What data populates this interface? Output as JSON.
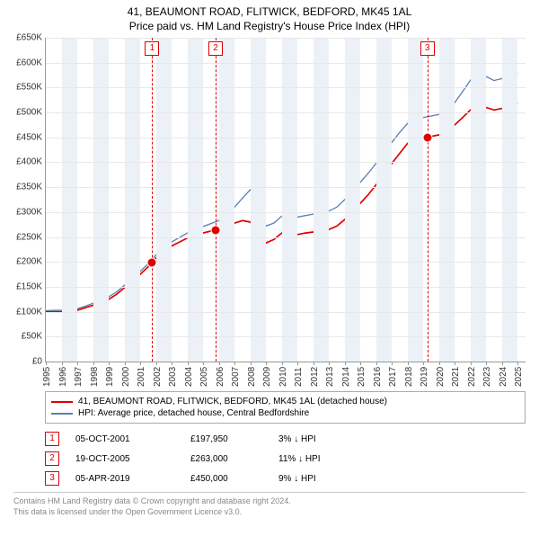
{
  "title": "41, BEAUMONT ROAD, FLITWICK, BEDFORD, MK45 1AL",
  "subtitle": "Price paid vs. HM Land Registry's House Price Index (HPI)",
  "chart": {
    "type": "line",
    "background_color": "#ffffff",
    "grid_color": "#e8e8e8",
    "shade_color": "#ebf1f6",
    "axis_color": "#999999",
    "font_family": "Arial",
    "title_fontsize": 12,
    "label_fontsize": 10,
    "x_years": [
      1995,
      1996,
      1997,
      1998,
      1999,
      2000,
      2001,
      2002,
      2003,
      2004,
      2005,
      2006,
      2007,
      2008,
      2009,
      2010,
      2011,
      2012,
      2013,
      2014,
      2015,
      2016,
      2017,
      2018,
      2019,
      2020,
      2021,
      2022,
      2023,
      2024,
      2025
    ],
    "xlim": [
      1995,
      2025.5
    ],
    "ylim": [
      0,
      650000
    ],
    "ytick_step": 50000,
    "yticks": [
      "£0",
      "£50K",
      "£100K",
      "£150K",
      "£200K",
      "£250K",
      "£300K",
      "£350K",
      "£400K",
      "£450K",
      "£500K",
      "£550K",
      "£600K",
      "£650K"
    ],
    "shaded_years": [
      1996,
      1998,
      2000,
      2002,
      2004,
      2006,
      2008,
      2010,
      2012,
      2014,
      2016,
      2018,
      2020,
      2022,
      2024
    ],
    "series": [
      {
        "name": "red",
        "label": "41, BEAUMONT ROAD, FLITWICK, BEDFORD, MK45 1AL (detached house)",
        "color": "#e00000",
        "width": 1.7,
        "points": [
          [
            1995.0,
            100000
          ],
          [
            1995.5,
            100000
          ],
          [
            1996.0,
            100000
          ],
          [
            1996.5,
            101000
          ],
          [
            1997.0,
            103000
          ],
          [
            1997.5,
            108000
          ],
          [
            1998.0,
            113000
          ],
          [
            1998.5,
            120000
          ],
          [
            1999.0,
            125000
          ],
          [
            1999.5,
            135000
          ],
          [
            2000.0,
            148000
          ],
          [
            2000.5,
            160000
          ],
          [
            2001.0,
            175000
          ],
          [
            2001.5,
            190000
          ],
          [
            2001.76,
            197950
          ],
          [
            2002.0,
            208000
          ],
          [
            2002.5,
            222000
          ],
          [
            2003.0,
            232000
          ],
          [
            2003.5,
            240000
          ],
          [
            2004.0,
            248000
          ],
          [
            2004.5,
            255000
          ],
          [
            2005.0,
            258000
          ],
          [
            2005.5,
            262000
          ],
          [
            2005.8,
            263000
          ],
          [
            2006.0,
            265000
          ],
          [
            2006.5,
            272000
          ],
          [
            2007.0,
            278000
          ],
          [
            2007.5,
            283000
          ],
          [
            2008.0,
            280000
          ],
          [
            2008.5,
            260000
          ],
          [
            2009.0,
            238000
          ],
          [
            2009.5,
            245000
          ],
          [
            2010.0,
            258000
          ],
          [
            2010.5,
            262000
          ],
          [
            2011.0,
            255000
          ],
          [
            2011.5,
            258000
          ],
          [
            2012.0,
            260000
          ],
          [
            2012.5,
            262000
          ],
          [
            2013.0,
            265000
          ],
          [
            2013.5,
            272000
          ],
          [
            2014.0,
            285000
          ],
          [
            2014.5,
            300000
          ],
          [
            2015.0,
            318000
          ],
          [
            2015.5,
            335000
          ],
          [
            2016.0,
            355000
          ],
          [
            2016.5,
            375000
          ],
          [
            2017.0,
            398000
          ],
          [
            2017.5,
            418000
          ],
          [
            2018.0,
            438000
          ],
          [
            2018.5,
            445000
          ],
          [
            2019.0,
            448000
          ],
          [
            2019.26,
            450000
          ],
          [
            2019.5,
            452000
          ],
          [
            2020.0,
            455000
          ],
          [
            2020.5,
            460000
          ],
          [
            2021.0,
            475000
          ],
          [
            2021.5,
            490000
          ],
          [
            2022.0,
            505000
          ],
          [
            2022.5,
            518000
          ],
          [
            2023.0,
            510000
          ],
          [
            2023.5,
            505000
          ],
          [
            2024.0,
            508000
          ],
          [
            2024.5,
            512000
          ],
          [
            2025.0,
            518000
          ]
        ]
      },
      {
        "name": "blue",
        "label": "HPI: Average price, detached house, Central Bedfordshire",
        "color": "#5b7fb0",
        "width": 1.3,
        "points": [
          [
            1995.0,
            102000
          ],
          [
            1995.5,
            103000
          ],
          [
            1996.0,
            103000
          ],
          [
            1996.5,
            104000
          ],
          [
            1997.0,
            106000
          ],
          [
            1997.5,
            111000
          ],
          [
            1998.0,
            117000
          ],
          [
            1998.5,
            124000
          ],
          [
            1999.0,
            130000
          ],
          [
            1999.5,
            140000
          ],
          [
            2000.0,
            153000
          ],
          [
            2000.5,
            166000
          ],
          [
            2001.0,
            181000
          ],
          [
            2001.5,
            196000
          ],
          [
            2002.0,
            214000
          ],
          [
            2002.5,
            229000
          ],
          [
            2003.0,
            240000
          ],
          [
            2003.5,
            249000
          ],
          [
            2004.0,
            258000
          ],
          [
            2004.5,
            266000
          ],
          [
            2005.0,
            271000
          ],
          [
            2005.5,
            277000
          ],
          [
            2006.0,
            283000
          ],
          [
            2006.5,
            295000
          ],
          [
            2007.0,
            310000
          ],
          [
            2007.5,
            328000
          ],
          [
            2008.0,
            345000
          ],
          [
            2008.5,
            320000
          ],
          [
            2009.0,
            272000
          ],
          [
            2009.5,
            278000
          ],
          [
            2010.0,
            292000
          ],
          [
            2010.5,
            298000
          ],
          [
            2011.0,
            290000
          ],
          [
            2011.5,
            293000
          ],
          [
            2012.0,
            296000
          ],
          [
            2012.5,
            298000
          ],
          [
            2013.0,
            302000
          ],
          [
            2013.5,
            310000
          ],
          [
            2014.0,
            325000
          ],
          [
            2014.5,
            342000
          ],
          [
            2015.0,
            360000
          ],
          [
            2015.5,
            378000
          ],
          [
            2016.0,
            398000
          ],
          [
            2016.5,
            418000
          ],
          [
            2017.0,
            440000
          ],
          [
            2017.5,
            460000
          ],
          [
            2018.0,
            478000
          ],
          [
            2018.5,
            486000
          ],
          [
            2019.0,
            490000
          ],
          [
            2019.5,
            493000
          ],
          [
            2020.0,
            496000
          ],
          [
            2020.5,
            502000
          ],
          [
            2021.0,
            520000
          ],
          [
            2021.5,
            542000
          ],
          [
            2022.0,
            565000
          ],
          [
            2022.5,
            585000
          ],
          [
            2023.0,
            572000
          ],
          [
            2023.5,
            564000
          ],
          [
            2024.0,
            568000
          ],
          [
            2024.5,
            575000
          ],
          [
            2025.0,
            580000
          ]
        ]
      }
    ],
    "markers": [
      {
        "idx": "1",
        "year": 2001.76,
        "value": 197950
      },
      {
        "idx": "2",
        "year": 2005.8,
        "value": 263000
      },
      {
        "idx": "3",
        "year": 2019.26,
        "value": 450000
      }
    ]
  },
  "sales": [
    {
      "idx": "1",
      "date": "05-OCT-2001",
      "price": "£197,950",
      "delta": "3% ↓ HPI"
    },
    {
      "idx": "2",
      "date": "19-OCT-2005",
      "price": "£263,000",
      "delta": "11% ↓ HPI"
    },
    {
      "idx": "3",
      "date": "05-APR-2019",
      "price": "£450,000",
      "delta": "9% ↓ HPI"
    }
  ],
  "footer": {
    "line1": "Contains HM Land Registry data © Crown copyright and database right 2024.",
    "line2": "This data is licensed under the Open Government Licence v3.0."
  }
}
